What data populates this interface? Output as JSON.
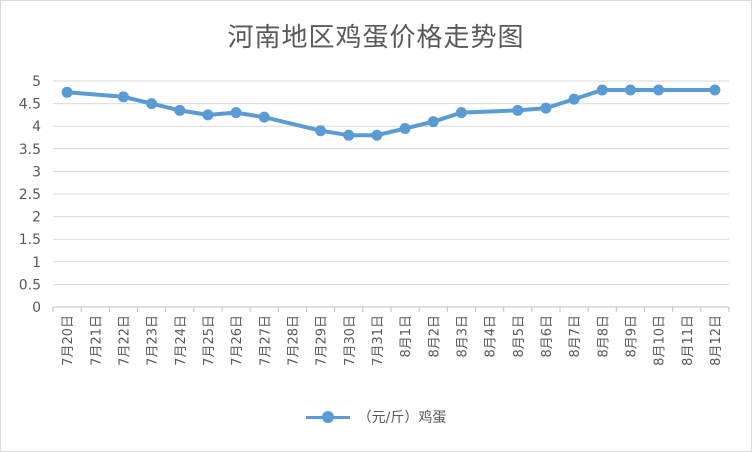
{
  "chart_data": {
    "type": "line",
    "title": "河南地区鸡蛋价格走势图",
    "categories": [
      "7月20日",
      "7月21日",
      "7月22日",
      "7月23日",
      "7月24日",
      "7月25日",
      "7月26日",
      "7月27日",
      "7月28日",
      "7月29日",
      "7月30日",
      "7月31日",
      "8月1日",
      "8月2日",
      "8月3日",
      "8月4日",
      "8月5日",
      "8月6日",
      "8月7日",
      "8月8日",
      "8月9日",
      "8月10日",
      "8月11日",
      "8月12日"
    ],
    "series": [
      {
        "name": "（元/斤）鸡蛋",
        "color": "#5b9bd5",
        "values": [
          4.75,
          null,
          4.65,
          4.5,
          4.35,
          4.25,
          4.3,
          4.2,
          null,
          3.9,
          3.8,
          3.8,
          3.95,
          4.1,
          4.3,
          null,
          4.35,
          4.4,
          4.6,
          4.8,
          4.8,
          4.8,
          null,
          4.8
        ]
      }
    ],
    "yticks": [
      "0",
      "0.5",
      "1",
      "1.5",
      "2",
      "2.5",
      "3",
      "3.5",
      "4",
      "4.5",
      "5"
    ],
    "ylim": [
      0,
      5
    ],
    "grid": true,
    "legend_position": "bottom"
  }
}
